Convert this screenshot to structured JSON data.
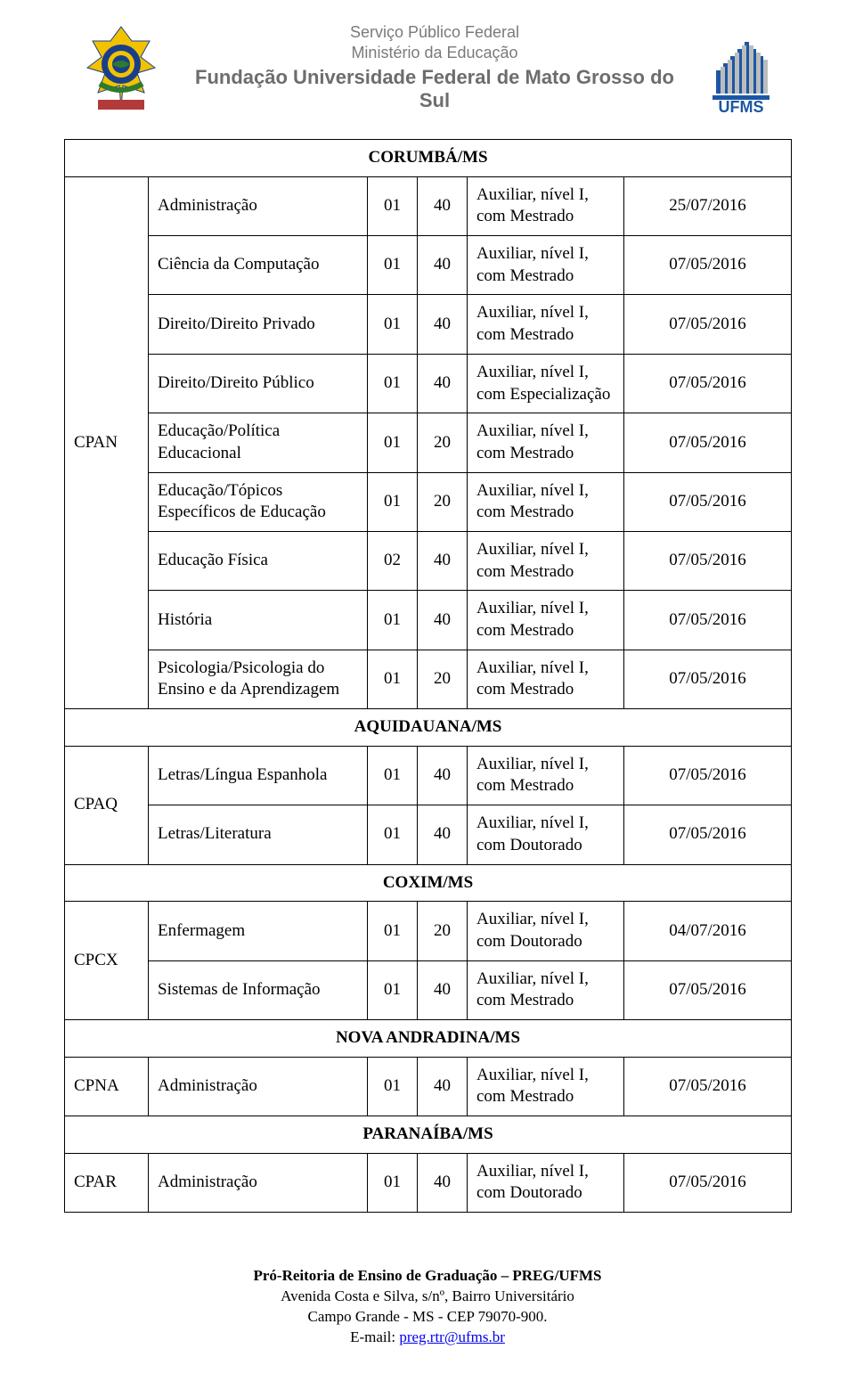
{
  "header": {
    "line1": "Serviço Público Federal",
    "line2": "Ministério da Educação",
    "line3": "Fundação Universidade Federal de Mato Grosso do Sul"
  },
  "sections": [
    {
      "title": "CORUMBÁ/MS",
      "unit": "CPAN",
      "rows": [
        {
          "area": "Administração",
          "n1": "01",
          "n2": "40",
          "level": "Auxiliar, nível I, com Mestrado",
          "date": "25/07/2016"
        },
        {
          "area": "Ciência da Computação",
          "n1": "01",
          "n2": "40",
          "level": "Auxiliar, nível I, com Mestrado",
          "date": "07/05/2016"
        },
        {
          "area": "Direito/Direito Privado",
          "n1": "01",
          "n2": "40",
          "level": "Auxiliar, nível I, com Mestrado",
          "date": "07/05/2016"
        },
        {
          "area": "Direito/Direito Público",
          "n1": "01",
          "n2": "40",
          "level": "Auxiliar, nível I, com Especialização",
          "date": "07/05/2016"
        },
        {
          "area": "Educação/Política Educacional",
          "n1": "01",
          "n2": "20",
          "level": "Auxiliar, nível I, com Mestrado",
          "date": "07/05/2016"
        },
        {
          "area": "Educação/Tópicos Específicos de Educação",
          "n1": "01",
          "n2": "20",
          "level": "Auxiliar, nível I, com Mestrado",
          "date": "07/05/2016"
        },
        {
          "area": "Educação Física",
          "n1": "02",
          "n2": "40",
          "level": "Auxiliar, nível I, com Mestrado",
          "date": "07/05/2016"
        },
        {
          "area": "História",
          "n1": "01",
          "n2": "40",
          "level": "Auxiliar, nível I, com Mestrado",
          "date": "07/05/2016"
        },
        {
          "area": "Psicologia/Psicologia do Ensino e da Aprendizagem",
          "n1": "01",
          "n2": "20",
          "level": "Auxiliar, nível I, com Mestrado",
          "date": "07/05/2016"
        }
      ]
    },
    {
      "title": "AQUIDAUANA/MS",
      "unit": "CPAQ",
      "rows": [
        {
          "area": "Letras/Língua Espanhola",
          "n1": "01",
          "n2": "40",
          "level": "Auxiliar, nível I, com Mestrado",
          "date": "07/05/2016"
        },
        {
          "area": "Letras/Literatura",
          "n1": "01",
          "n2": "40",
          "level": "Auxiliar, nível I, com Doutorado",
          "date": "07/05/2016"
        }
      ]
    },
    {
      "title": "COXIM/MS",
      "unit": "CPCX",
      "rows": [
        {
          "area": "Enfermagem",
          "n1": "01",
          "n2": "20",
          "level": "Auxiliar, nível I, com Doutorado",
          "date": "04/07/2016"
        },
        {
          "area": "Sistemas de Informação",
          "n1": "01",
          "n2": "40",
          "level": "Auxiliar, nível I, com Mestrado",
          "date": "07/05/2016"
        }
      ]
    },
    {
      "title": "NOVA ANDRADINA/MS",
      "unit": "CPNA",
      "rows": [
        {
          "area": "Administração",
          "n1": "01",
          "n2": "40",
          "level": "Auxiliar, nível I, com Mestrado",
          "date": "07/05/2016"
        }
      ]
    },
    {
      "title": "PARANAÍBA/MS",
      "unit": "CPAR",
      "rows": [
        {
          "area": "Administração",
          "n1": "01",
          "n2": "40",
          "level": "Auxiliar, nível I, com Doutorado",
          "date": "07/05/2016"
        }
      ]
    }
  ],
  "footer": {
    "line1": "Pró-Reitoria de Ensino de Graduação – PREG/UFMS",
    "line2": "Avenida Costa e Silva, s/nº, Bairro Universitário",
    "line3": "Campo Grande - MS - CEP 79070-900.",
    "email_label": "E-mail: ",
    "email": "preg.rtr@ufms.br"
  },
  "colors": {
    "text": "#000000",
    "header_grey": "#7a7a7a",
    "border": "#000000",
    "link": "#0000ee",
    "crest_blue": "#1a3f8a",
    "crest_green": "#2f7a2f",
    "crest_yellow": "#f2c200",
    "ufms_blue": "#1c57a5",
    "ufms_grey": "#bcbcbc"
  }
}
